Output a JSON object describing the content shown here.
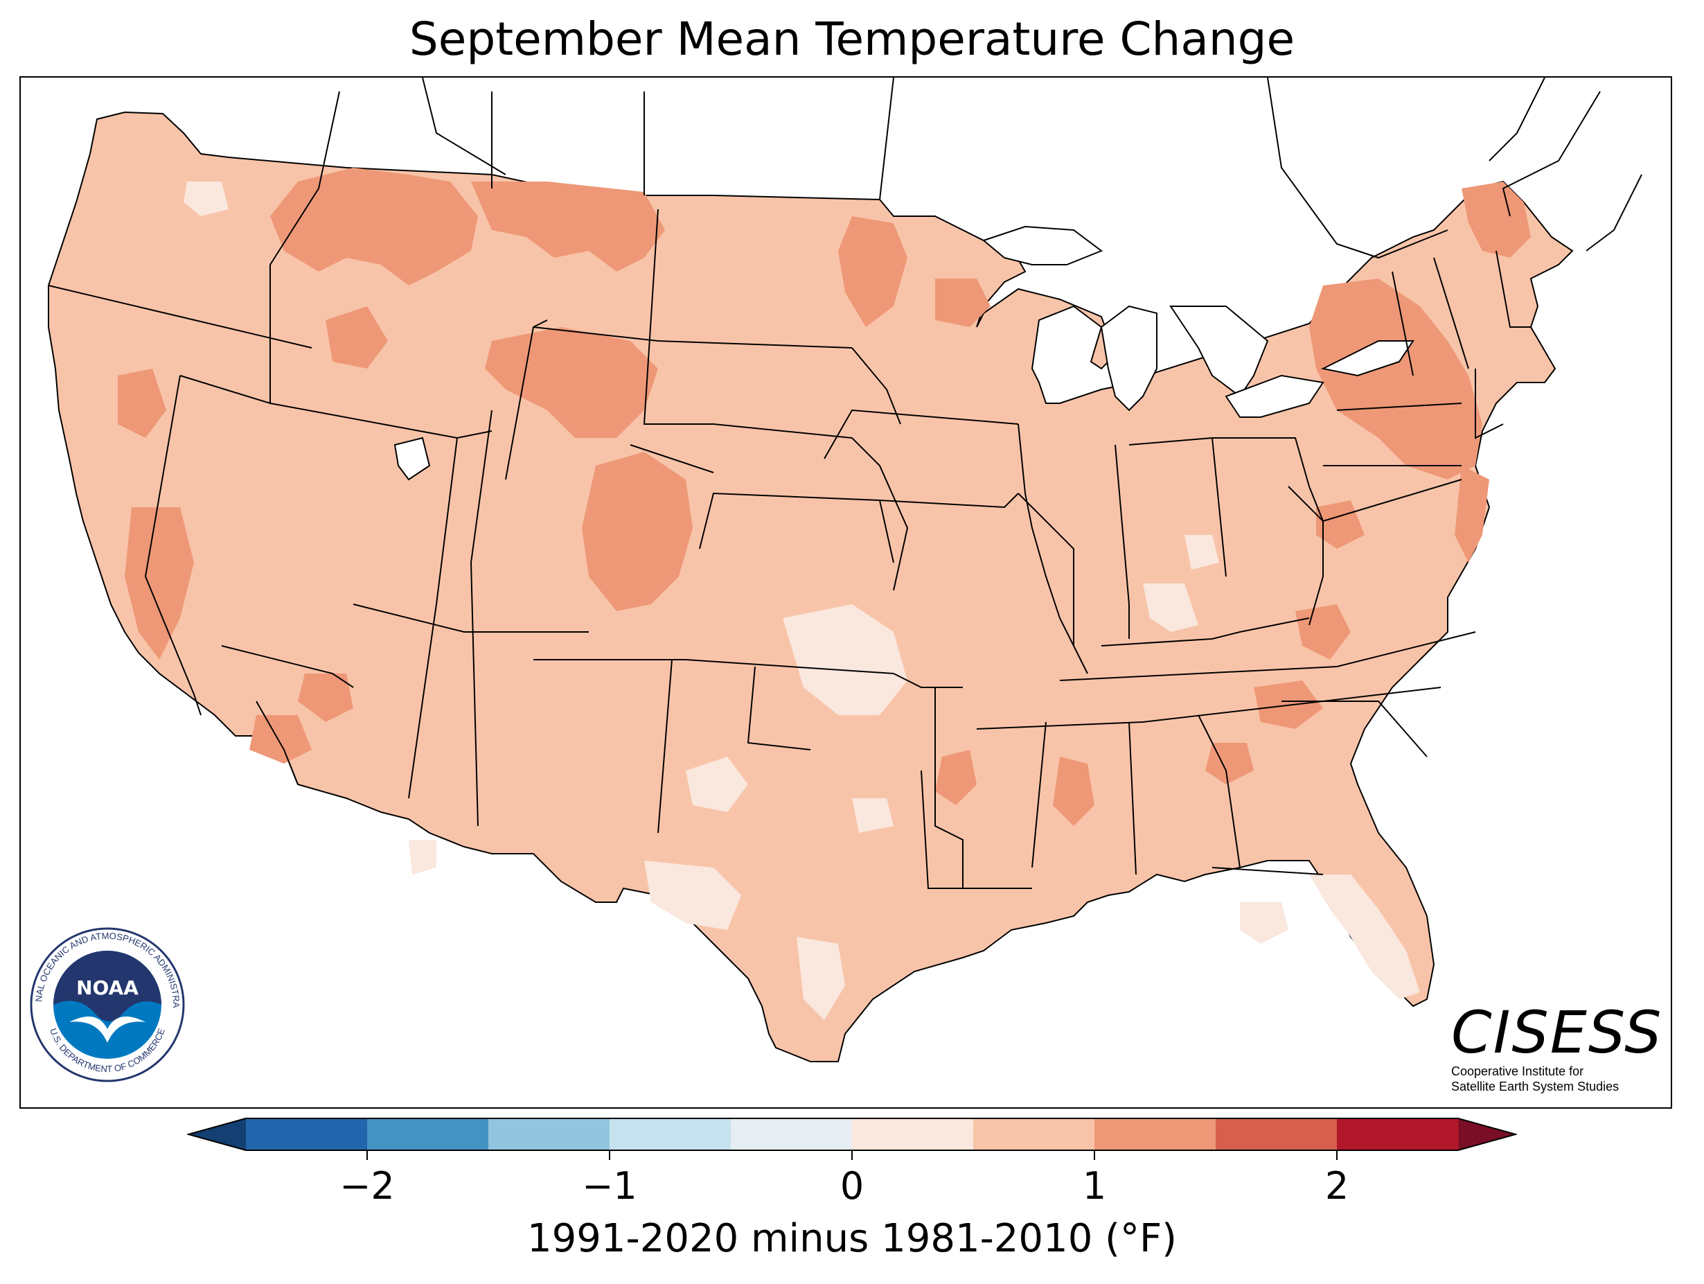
{
  "title": "September Mean Temperature Change",
  "colorbar": {
    "label": "1991-2020 minus 1981-2010 (°F)",
    "ticks": [
      "−2",
      "−1",
      "0",
      "1",
      "2"
    ],
    "tick_values": [
      -2,
      -1,
      0,
      1,
      2
    ],
    "bins": [
      {
        "from": -2.5,
        "to": -2.0,
        "color": "#2166ac"
      },
      {
        "from": -2.0,
        "to": -1.5,
        "color": "#4393c3"
      },
      {
        "from": -1.5,
        "to": -1.0,
        "color": "#92c5de"
      },
      {
        "from": -1.0,
        "to": -0.5,
        "color": "#c7e2ef"
      },
      {
        "from": -0.5,
        "to": 0.0,
        "color": "#e6eef3"
      },
      {
        "from": 0.0,
        "to": 0.5,
        "color": "#fae7dd"
      },
      {
        "from": 0.5,
        "to": 1.0,
        "color": "#f8c4a9"
      },
      {
        "from": 1.0,
        "to": 1.5,
        "color": "#ee9877"
      },
      {
        "from": 1.5,
        "to": 2.0,
        "color": "#d6604d"
      },
      {
        "from": 2.0,
        "to": 2.5,
        "color": "#b2182b"
      }
    ],
    "under_color": "#133f72",
    "over_color": "#7a0e26",
    "range": [
      -2.5,
      2.5
    ]
  },
  "map": {
    "region": "Contiguous United States",
    "base_color": "#f8c4a9",
    "warm_color": "#ee9877",
    "cool_color": "#fae7dd",
    "no_data_color": "#ffffff",
    "border_color": "#000000"
  },
  "logos": {
    "noaa": {
      "word": "NOAA",
      "ring_text": "NATIONAL OCEANIC AND ATMOSPHERIC ADMINISTRATION",
      "ring_text_bottom": "U.S. DEPARTMENT OF COMMERCE",
      "color_dark": "#23366d",
      "color_blue": "#0079c1"
    },
    "cisess": {
      "word": "CISESS",
      "subtitle_line1": "Cooperative Institute for",
      "subtitle_line2": "Satellite Earth System Studies"
    }
  }
}
